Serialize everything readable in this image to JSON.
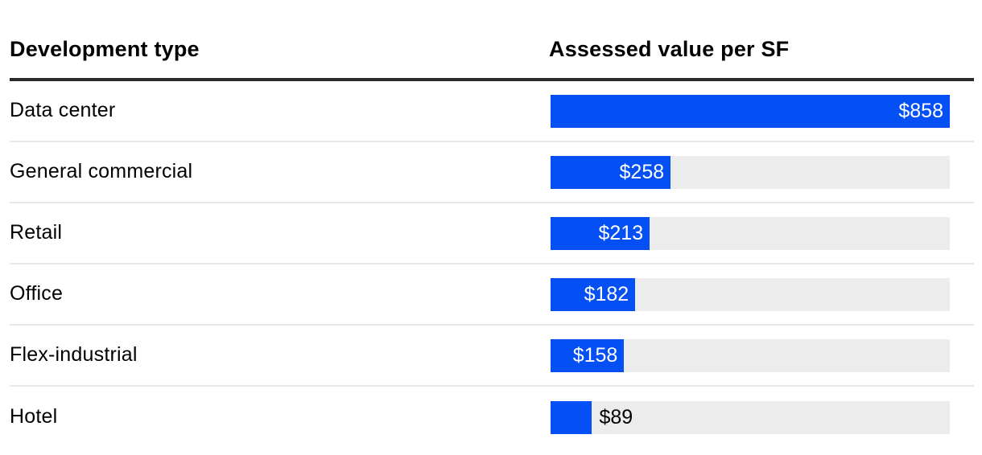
{
  "header": {
    "col1": "Development type",
    "col2": "Assessed value per SF"
  },
  "chart_data": {
    "type": "bar",
    "orientation": "horizontal",
    "col1_header": "Development type",
    "col2_header": "Assessed value per SF",
    "categories": [
      "Data center",
      "General commercial",
      "Retail",
      "Office",
      "Flex-industrial",
      "Hotel"
    ],
    "values": [
      858,
      258,
      213,
      182,
      158,
      89
    ],
    "value_labels": [
      "$858",
      "$258",
      "$213",
      "$182",
      "$158",
      "$89"
    ],
    "label_inside": [
      true,
      true,
      true,
      true,
      true,
      false
    ],
    "xlim": [
      0,
      858
    ],
    "grid": false,
    "legend": "none",
    "colors": {
      "bar": "#0450F4",
      "track": "#ECECEC",
      "divider": "#E8E8E8",
      "header_rule": "#2A2A2A",
      "value_inside": "#FFFFFF",
      "value_outside": "#000000",
      "text": "#000000",
      "background": "#FFFFFF"
    }
  }
}
